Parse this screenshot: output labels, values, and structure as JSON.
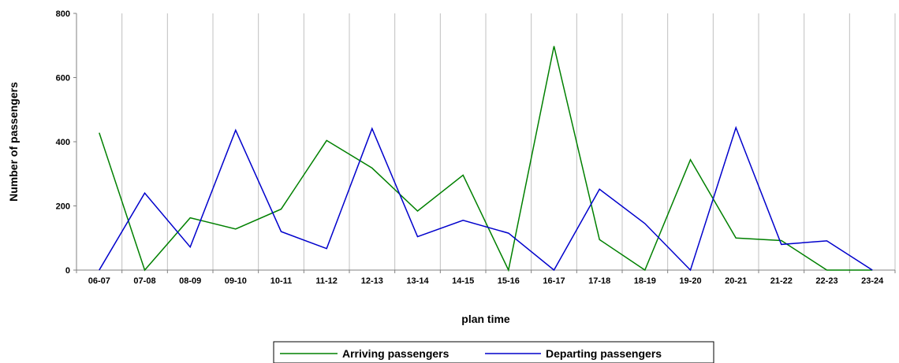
{
  "chart_data": {
    "type": "line",
    "title": "",
    "xlabel": "plan time",
    "ylabel": "Number of passengers",
    "categories": [
      "06-07",
      "07-08",
      "08-09",
      "09-10",
      "10-11",
      "11-12",
      "12-13",
      "13-14",
      "14-15",
      "15-16",
      "16-17",
      "17-18",
      "18-19",
      "19-20",
      "20-21",
      "21-22",
      "22-23",
      "23-24"
    ],
    "ylim": [
      0,
      800
    ],
    "yticks": [
      0,
      200,
      400,
      600,
      800
    ],
    "grid": {
      "vertical": true,
      "horizontal": false
    },
    "legend_position": "bottom",
    "series": [
      {
        "name": "Arriving passengers",
        "color": "#008000",
        "values": [
          428,
          0,
          163,
          128,
          190,
          404,
          318,
          184,
          296,
          0,
          698,
          95,
          0,
          344,
          100,
          92,
          0,
          0
        ]
      },
      {
        "name": "Departing passengers",
        "color": "#0000cc",
        "values": [
          0,
          240,
          72,
          436,
          120,
          67,
          441,
          104,
          155,
          115,
          0,
          252,
          145,
          0,
          444,
          80,
          91,
          0
        ]
      }
    ]
  }
}
